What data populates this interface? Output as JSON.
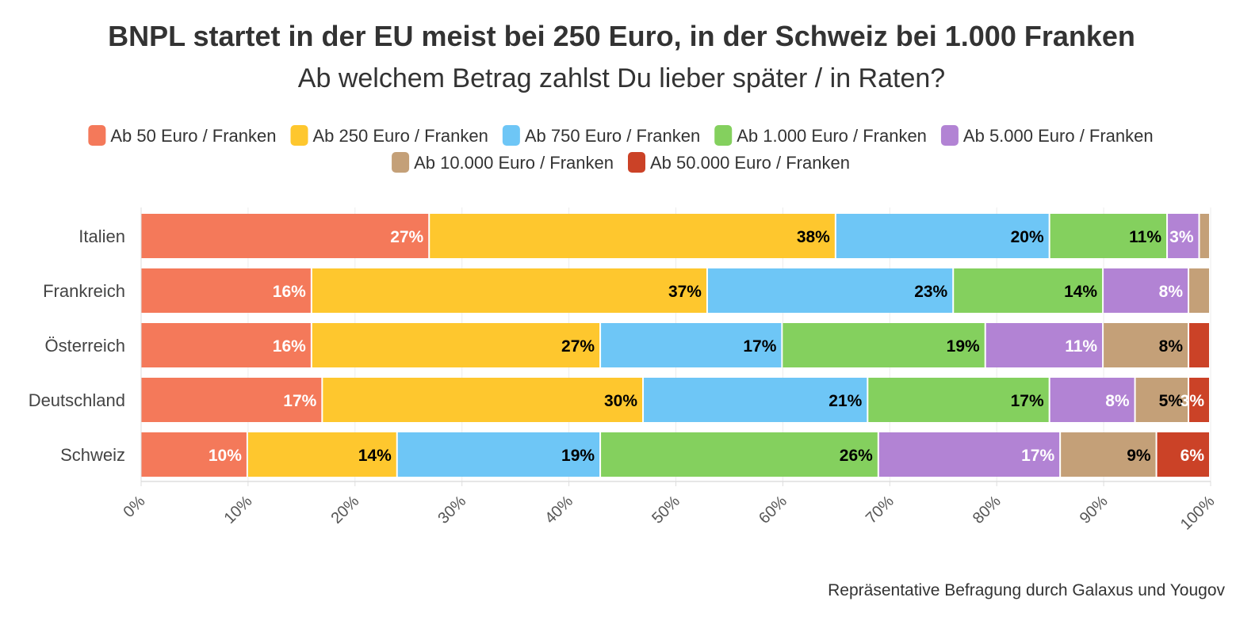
{
  "chart_data": {
    "type": "bar",
    "orientation": "horizontal",
    "stacked": true,
    "title": "BNPL startet in der EU meist bei 250 Euro, in der Schweiz bei 1.000 Franken",
    "subtitle": "Ab welchem Betrag zahlst Du lieber später / in Raten?",
    "caption": "Repräsentative Befragung durch Galaxus und Yougov",
    "xlim": [
      0,
      100
    ],
    "xticks": [
      "0%",
      "10%",
      "20%",
      "30%",
      "40%",
      "50%",
      "60%",
      "70%",
      "80%",
      "90%",
      "100%"
    ],
    "legend_position": "top",
    "categories": [
      "Italien",
      "Frankreich",
      "Österreich",
      "Deutschland",
      "Schweiz"
    ],
    "series": [
      {
        "name": "Ab 50 Euro / Franken",
        "color": "#F4795A",
        "label_color": "#ffffff",
        "values": [
          27,
          16,
          16,
          17,
          10
        ]
      },
      {
        "name": "Ab 250 Euro / Franken",
        "color": "#FEC72E",
        "label_color": "#000000",
        "values": [
          38,
          37,
          27,
          30,
          14
        ]
      },
      {
        "name": "Ab 750 Euro / Franken",
        "color": "#6EC6F6",
        "label_color": "#000000",
        "values": [
          20,
          23,
          17,
          21,
          19
        ]
      },
      {
        "name": "Ab 1.000 Euro / Franken",
        "color": "#84D05E",
        "label_color": "#000000",
        "values": [
          11,
          14,
          19,
          17,
          26
        ]
      },
      {
        "name": "Ab 5.000 Euro / Franken",
        "color": "#B283D4",
        "label_color": "#ffffff",
        "values": [
          3,
          8,
          11,
          8,
          17
        ]
      },
      {
        "name": "Ab 10.000 Euro / Franken",
        "color": "#C4A078",
        "label_color": "#000000",
        "values": [
          1,
          2,
          8,
          5,
          9
        ]
      },
      {
        "name": "Ab 50.000 Euro / Franken",
        "color": "#CB4227",
        "label_color": "#ffffff",
        "values": [
          0,
          0,
          2,
          3,
          6
        ]
      }
    ],
    "label_min": 3
  }
}
